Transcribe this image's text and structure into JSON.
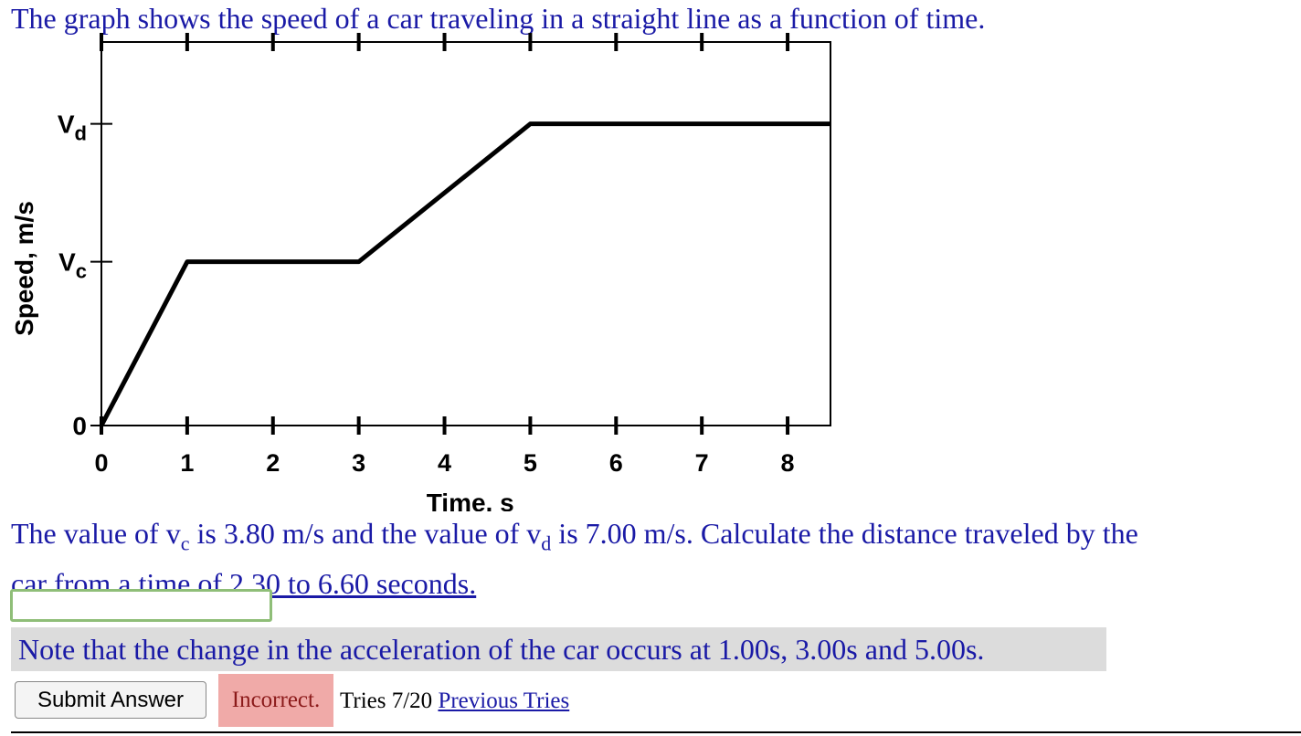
{
  "intro_text": "The graph shows the speed of a car traveling in a straight line as a function of time.",
  "question": {
    "before_vc": "The value of v",
    "vc_sub": "c",
    "after_vc": " is 3.80 m/s and the value of v",
    "vd_sub": "d",
    "after_vd": " is 7.00 m/s. Calculate the distance traveled by the ",
    "line2": "car from a time of 2.30 to 6.60 seconds."
  },
  "answer_input": {
    "value": ""
  },
  "hint_text": "Note that the change in the acceleration of the car occurs at 1.00s, 3.00s and 5.00s.",
  "submit_label": "Submit Answer",
  "status_label": "Incorrect.",
  "tries_text": "Tries 7/20",
  "previous_tries_label": "Previous Tries",
  "chart_data": {
    "type": "line",
    "xlabel": "Time, s",
    "ylabel": "Speed, m/s",
    "x_ticks": [
      "0",
      "1",
      "2",
      "3",
      "4",
      "5",
      "6",
      "7",
      "8"
    ],
    "y_ticks": [
      {
        "label": "0",
        "sub": "",
        "value": 0
      },
      {
        "label": "V",
        "sub": "c",
        "value": 3.8
      },
      {
        "label": "V",
        "sub": "d",
        "value": 7.0
      }
    ],
    "xlim": [
      0,
      8.5
    ],
    "ylim": [
      0,
      8.9
    ],
    "grid": false,
    "series": [
      {
        "x": [
          0,
          1,
          3,
          5,
          8.5
        ],
        "y": [
          0,
          3.8,
          3.8,
          7.0,
          7.0
        ]
      }
    ]
  }
}
